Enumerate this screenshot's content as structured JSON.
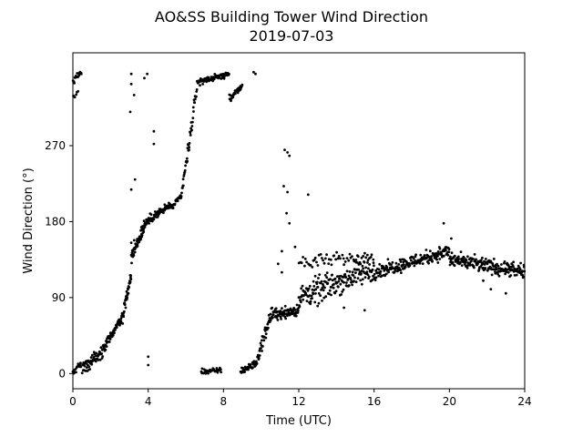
{
  "chart_data": {
    "type": "scatter",
    "title": "AO&SS Building Tower Wind Direction",
    "subtitle": "2019-07-03",
    "xlabel": "Time (UTC)",
    "ylabel": "Wind Direction (°)",
    "xlim": [
      0,
      24
    ],
    "ylim": [
      -18,
      380
    ],
    "xticks": [
      0,
      4,
      8,
      12,
      16,
      20,
      24
    ],
    "yticks": [
      0,
      90,
      180,
      270
    ],
    "grid": false,
    "legend": "none",
    "marker_color": "#000000",
    "series": [
      {
        "segments": [
          {
            "t0": 0.0,
            "t1": 0.45,
            "d0": 0,
            "d1": 12,
            "noise": 6,
            "n": 14
          },
          {
            "t0": 0.0,
            "t1": 0.5,
            "d0": 345,
            "d1": 360,
            "noise": 6,
            "n": 20
          },
          {
            "t0": 0.0,
            "t1": 0.3,
            "d0": 325,
            "d1": 335,
            "noise": 5,
            "n": 6
          },
          {
            "t0": 0.5,
            "t1": 1.6,
            "d0": 5,
            "d1": 25,
            "noise": 10,
            "n": 55
          },
          {
            "t0": 1.6,
            "t1": 2.6,
            "d0": 30,
            "d1": 65,
            "noise": 8,
            "n": 70
          },
          {
            "t0": 2.6,
            "t1": 3.1,
            "d0": 65,
            "d1": 115,
            "noise": 12,
            "n": 40
          },
          {
            "t0": 3.1,
            "t1": 3.9,
            "d0": 140,
            "d1": 180,
            "noise": 12,
            "n": 65
          },
          {
            "t0": 3.9,
            "t1": 5.2,
            "d0": 180,
            "d1": 200,
            "noise": 7,
            "n": 75
          },
          {
            "t0": 5.2,
            "t1": 5.8,
            "d0": 195,
            "d1": 212,
            "noise": 5,
            "n": 25
          },
          {
            "t0": 5.8,
            "t1": 6.6,
            "d0": 215,
            "d1": 340,
            "noise": 15,
            "n": 45
          },
          {
            "t0": 6.6,
            "t1": 8.3,
            "d0": 345,
            "d1": 355,
            "noise": 5,
            "n": 75
          },
          {
            "t0": 8.3,
            "t1": 9.0,
            "d0": 325,
            "d1": 340,
            "noise": 6,
            "n": 30
          },
          {
            "t0": 6.8,
            "t1": 7.9,
            "d0": 3,
            "d1": 3,
            "noise": 5,
            "n": 35
          },
          {
            "t0": 8.9,
            "t1": 9.8,
            "d0": 3,
            "d1": 12,
            "noise": 6,
            "n": 40
          },
          {
            "t0": 9.8,
            "t1": 10.6,
            "d0": 18,
            "d1": 75,
            "noise": 12,
            "n": 40
          },
          {
            "t0": 10.6,
            "t1": 12.0,
            "d0": 70,
            "d1": 75,
            "noise": 10,
            "n": 80
          },
          {
            "t0": 12.0,
            "t1": 16.0,
            "d0": 90,
            "d1": 125,
            "noise": 22,
            "n": 190
          },
          {
            "t0": 12.0,
            "t1": 16.0,
            "d0": 130,
            "d1": 140,
            "noise": 12,
            "n": 60
          },
          {
            "t0": 16.0,
            "t1": 20.0,
            "d0": 120,
            "d1": 145,
            "noise": 12,
            "n": 190
          },
          {
            "t0": 20.0,
            "t1": 24.0,
            "d0": 135,
            "d1": 120,
            "noise": 13,
            "n": 200
          }
        ],
        "outliers": [
          [
            3.1,
            355
          ],
          [
            3.1,
            343
          ],
          [
            3.25,
            330
          ],
          [
            3.05,
            310
          ],
          [
            3.1,
            218
          ],
          [
            3.3,
            230
          ],
          [
            3.8,
            350
          ],
          [
            3.95,
            355
          ],
          [
            4.3,
            287
          ],
          [
            4.3,
            272
          ],
          [
            4.0,
            20
          ],
          [
            4.0,
            10
          ],
          [
            9.6,
            357
          ],
          [
            9.7,
            355
          ],
          [
            3.1,
            155
          ],
          [
            11.25,
            265
          ],
          [
            11.4,
            262
          ],
          [
            11.5,
            258
          ],
          [
            11.2,
            222
          ],
          [
            11.4,
            215
          ],
          [
            11.35,
            190
          ],
          [
            11.5,
            178
          ],
          [
            12.5,
            212
          ],
          [
            11.1,
            145
          ],
          [
            11.8,
            150
          ],
          [
            10.9,
            130
          ],
          [
            11.1,
            120
          ],
          [
            19.7,
            178
          ],
          [
            20.1,
            160
          ],
          [
            21.8,
            110
          ],
          [
            22.2,
            100
          ],
          [
            23.0,
            95
          ],
          [
            14.4,
            78
          ],
          [
            15.5,
            75
          ],
          [
            13.0,
            80
          ]
        ]
      }
    ]
  }
}
